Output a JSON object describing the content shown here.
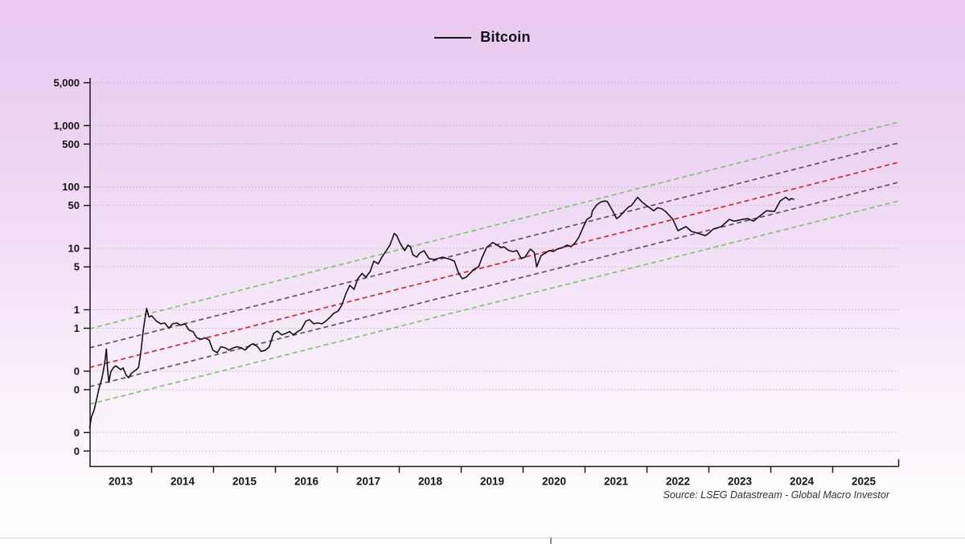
{
  "legend": {
    "label": "Bitcoin",
    "line_color": "#15151e"
  },
  "source_note": "Source: LSEG Datastream - Global Macro Investor",
  "colors": {
    "background_top": "#e9c9f0",
    "background_bottom": "#ffffff",
    "axis": "#1c1c1c",
    "tick_label": "#141414",
    "gridline": "#b7abbd",
    "price_line": "#131313",
    "channel_green": "#82c272",
    "channel_grey": "#5d5468",
    "channel_red": "#c82b35"
  },
  "chart_data": {
    "type": "line",
    "title": "Bitcoin",
    "legend_position": "top-center",
    "grid": "horizontal-dotted",
    "y_scale": "log",
    "y_unit": "USD thousands",
    "ylim": [
      0.0028,
      6000
    ],
    "xlim": [
      2013.0,
      2026.06
    ],
    "y_ticks": [
      {
        "value": 5000,
        "label": "5,000"
      },
      {
        "value": 1000,
        "label": "1,000"
      },
      {
        "value": 500,
        "label": "500"
      },
      {
        "value": 100,
        "label": "100"
      },
      {
        "value": 50,
        "label": "50"
      },
      {
        "value": 10,
        "label": "10"
      },
      {
        "value": 5,
        "label": "5"
      },
      {
        "value": 1,
        "label": "1"
      },
      {
        "value": 0.5,
        "label": "1"
      },
      {
        "value": 0.1,
        "label": "0"
      },
      {
        "value": 0.05,
        "label": "0"
      },
      {
        "value": 0.01,
        "label": "0"
      },
      {
        "value": 0.005,
        "label": "0"
      }
    ],
    "x_label_years": [
      2013,
      2014,
      2015,
      2016,
      2017,
      2018,
      2019,
      2020,
      2021,
      2022,
      2023,
      2024,
      2025
    ],
    "x_boundary_tick_years": [
      2014,
      2015,
      2016,
      2017,
      2018,
      2019,
      2020,
      2021,
      2022,
      2023,
      2024,
      2025
    ],
    "channel_lines": [
      {
        "name": "channel-upper-green",
        "color": "#82c272",
        "style": "dashed",
        "x_start": 2013.0,
        "x_end": 2026.06,
        "v_start": 0.49,
        "v_end": 1140
      },
      {
        "name": "channel-upper-grey",
        "color": "#5d5468",
        "style": "dashed",
        "x_start": 2013.0,
        "x_end": 2026.06,
        "v_start": 0.24,
        "v_end": 520
      },
      {
        "name": "channel-mid-red",
        "color": "#c82b35",
        "style": "dashed",
        "x_start": 2013.0,
        "x_end": 2026.06,
        "v_start": 0.115,
        "v_end": 252
      },
      {
        "name": "channel-lower-grey",
        "color": "#5d5468",
        "style": "dashed",
        "x_start": 2013.0,
        "x_end": 2026.06,
        "v_start": 0.056,
        "v_end": 119
      },
      {
        "name": "channel-lower-green",
        "color": "#82c272",
        "style": "dashed",
        "x_start": 2013.0,
        "x_end": 2026.06,
        "v_start": 0.029,
        "v_end": 59
      }
    ],
    "series": [
      {
        "name": "Bitcoin",
        "color": "#131313",
        "points": [
          [
            2013.0,
            0.012
          ],
          [
            2013.03,
            0.018
          ],
          [
            2013.07,
            0.023
          ],
          [
            2013.11,
            0.034
          ],
          [
            2013.15,
            0.052
          ],
          [
            2013.2,
            0.078
          ],
          [
            2013.24,
            0.13
          ],
          [
            2013.27,
            0.23
          ],
          [
            2013.29,
            0.105
          ],
          [
            2013.31,
            0.066
          ],
          [
            2013.34,
            0.097
          ],
          [
            2013.38,
            0.113
          ],
          [
            2013.42,
            0.122
          ],
          [
            2013.46,
            0.115
          ],
          [
            2013.5,
            0.106
          ],
          [
            2013.54,
            0.113
          ],
          [
            2013.59,
            0.086
          ],
          [
            2013.63,
            0.078
          ],
          [
            2013.67,
            0.091
          ],
          [
            2013.72,
            0.1
          ],
          [
            2013.76,
            0.107
          ],
          [
            2013.79,
            0.115
          ],
          [
            2013.81,
            0.157
          ],
          [
            2013.83,
            0.215
          ],
          [
            2013.85,
            0.33
          ],
          [
            2013.87,
            0.5
          ],
          [
            2013.92,
            1.05
          ],
          [
            2013.96,
            0.76
          ],
          [
            2014.0,
            0.8
          ],
          [
            2014.08,
            0.65
          ],
          [
            2014.15,
            0.59
          ],
          [
            2014.21,
            0.61
          ],
          [
            2014.28,
            0.5
          ],
          [
            2014.34,
            0.59
          ],
          [
            2014.41,
            0.61
          ],
          [
            2014.47,
            0.56
          ],
          [
            2014.54,
            0.59
          ],
          [
            2014.6,
            0.47
          ],
          [
            2014.67,
            0.44
          ],
          [
            2014.73,
            0.35
          ],
          [
            2014.8,
            0.33
          ],
          [
            2014.86,
            0.35
          ],
          [
            2014.93,
            0.32
          ],
          [
            2014.99,
            0.22
          ],
          [
            2015.06,
            0.2
          ],
          [
            2015.12,
            0.25
          ],
          [
            2015.19,
            0.24
          ],
          [
            2015.25,
            0.22
          ],
          [
            2015.32,
            0.24
          ],
          [
            2015.38,
            0.25
          ],
          [
            2015.45,
            0.24
          ],
          [
            2015.51,
            0.22
          ],
          [
            2015.58,
            0.26
          ],
          [
            2015.64,
            0.28
          ],
          [
            2015.71,
            0.25
          ],
          [
            2015.77,
            0.21
          ],
          [
            2015.84,
            0.22
          ],
          [
            2015.9,
            0.25
          ],
          [
            2015.97,
            0.41
          ],
          [
            2016.03,
            0.45
          ],
          [
            2016.1,
            0.39
          ],
          [
            2016.16,
            0.41
          ],
          [
            2016.23,
            0.44
          ],
          [
            2016.29,
            0.39
          ],
          [
            2016.36,
            0.44
          ],
          [
            2016.42,
            0.48
          ],
          [
            2016.49,
            0.65
          ],
          [
            2016.55,
            0.69
          ],
          [
            2016.62,
            0.59
          ],
          [
            2016.68,
            0.61
          ],
          [
            2016.75,
            0.59
          ],
          [
            2016.81,
            0.65
          ],
          [
            2016.88,
            0.75
          ],
          [
            2016.94,
            0.87
          ],
          [
            2017.01,
            0.95
          ],
          [
            2017.07,
            1.18
          ],
          [
            2017.14,
            1.85
          ],
          [
            2017.2,
            2.5
          ],
          [
            2017.27,
            2.15
          ],
          [
            2017.33,
            3.2
          ],
          [
            2017.4,
            3.9
          ],
          [
            2017.46,
            3.4
          ],
          [
            2017.53,
            4.2
          ],
          [
            2017.59,
            6.2
          ],
          [
            2017.66,
            5.6
          ],
          [
            2017.72,
            7.2
          ],
          [
            2017.79,
            9.2
          ],
          [
            2017.85,
            11.3
          ],
          [
            2017.92,
            17.5
          ],
          [
            2017.96,
            16.2
          ],
          [
            2018.01,
            12.3
          ],
          [
            2018.05,
            10.6
          ],
          [
            2018.09,
            9.2
          ],
          [
            2018.14,
            11.3
          ],
          [
            2018.18,
            10.6
          ],
          [
            2018.22,
            7.9
          ],
          [
            2018.28,
            7.2
          ],
          [
            2018.33,
            8.4
          ],
          [
            2018.4,
            9.2
          ],
          [
            2018.48,
            6.8
          ],
          [
            2018.57,
            6.6
          ],
          [
            2018.7,
            7.2
          ],
          [
            2018.83,
            6.6
          ],
          [
            2018.89,
            6.2
          ],
          [
            2018.96,
            3.9
          ],
          [
            2019.02,
            3.2
          ],
          [
            2019.08,
            3.4
          ],
          [
            2019.21,
            4.6
          ],
          [
            2019.28,
            5.0
          ],
          [
            2019.34,
            7.2
          ],
          [
            2019.41,
            10.3
          ],
          [
            2019.51,
            12.5
          ],
          [
            2019.58,
            11.3
          ],
          [
            2019.64,
            10.3
          ],
          [
            2019.69,
            10.6
          ],
          [
            2019.77,
            9.2
          ],
          [
            2019.84,
            8.9
          ],
          [
            2019.9,
            9.2
          ],
          [
            2019.97,
            6.8
          ],
          [
            2020.03,
            7.2
          ],
          [
            2020.1,
            9.2
          ],
          [
            2020.12,
            9.7
          ],
          [
            2020.18,
            8.6
          ],
          [
            2020.22,
            5.0
          ],
          [
            2020.29,
            7.6
          ],
          [
            2020.36,
            8.4
          ],
          [
            2020.42,
            9.2
          ],
          [
            2020.49,
            8.9
          ],
          [
            2020.55,
            9.7
          ],
          [
            2020.64,
            10.3
          ],
          [
            2020.71,
            11.3
          ],
          [
            2020.77,
            10.6
          ],
          [
            2020.84,
            12.3
          ],
          [
            2020.9,
            15.2
          ],
          [
            2020.97,
            22
          ],
          [
            2021.03,
            29.6
          ],
          [
            2021.1,
            33
          ],
          [
            2021.12,
            41
          ],
          [
            2021.19,
            51
          ],
          [
            2021.25,
            57
          ],
          [
            2021.32,
            59
          ],
          [
            2021.36,
            58
          ],
          [
            2021.45,
            40
          ],
          [
            2021.51,
            30.5
          ],
          [
            2021.57,
            34
          ],
          [
            2021.64,
            41
          ],
          [
            2021.7,
            47
          ],
          [
            2021.75,
            50
          ],
          [
            2021.85,
            68
          ],
          [
            2021.92,
            57
          ],
          [
            2021.98,
            51
          ],
          [
            2022.11,
            41
          ],
          [
            2022.17,
            46
          ],
          [
            2022.24,
            44
          ],
          [
            2022.3,
            40
          ],
          [
            2022.42,
            29.6
          ],
          [
            2022.5,
            19.4
          ],
          [
            2022.63,
            22.6
          ],
          [
            2022.72,
            18.9
          ],
          [
            2022.82,
            17.7
          ],
          [
            2022.94,
            16.1
          ],
          [
            2023.0,
            17.7
          ],
          [
            2023.07,
            20.6
          ],
          [
            2023.2,
            22.6
          ],
          [
            2023.33,
            29.6
          ],
          [
            2023.41,
            27.8
          ],
          [
            2023.54,
            29.6
          ],
          [
            2023.63,
            30.5
          ],
          [
            2023.72,
            27.8
          ],
          [
            2023.8,
            32.3
          ],
          [
            2023.93,
            41
          ],
          [
            2024.06,
            40
          ],
          [
            2024.15,
            59
          ],
          [
            2024.24,
            68
          ],
          [
            2024.3,
            61
          ],
          [
            2024.33,
            65
          ],
          [
            2024.37,
            63
          ]
        ]
      }
    ]
  }
}
